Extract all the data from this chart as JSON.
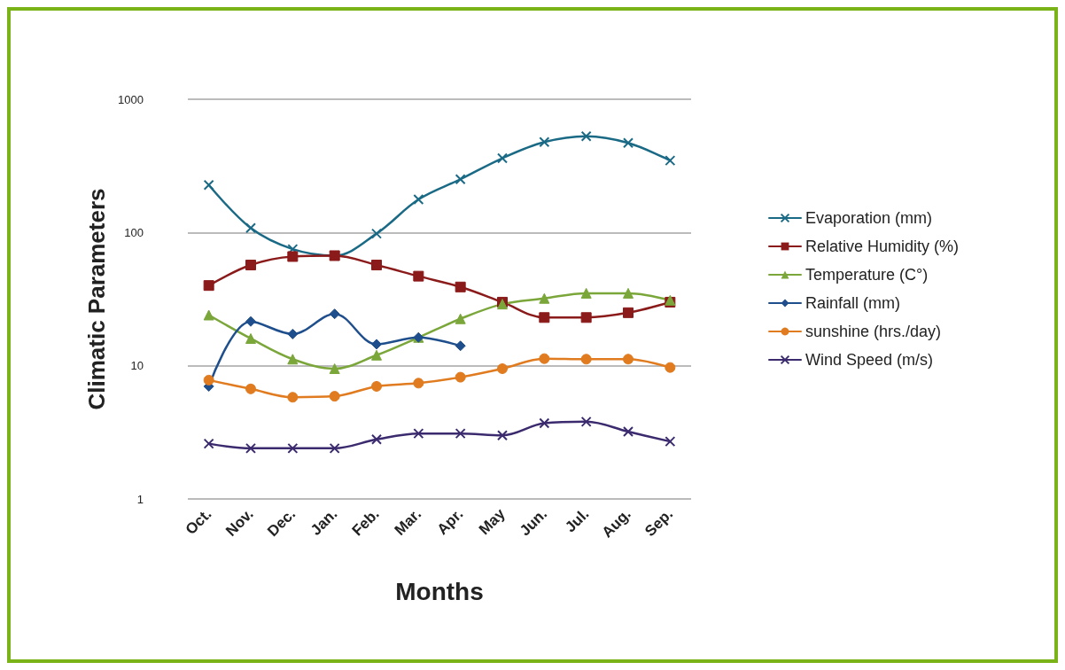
{
  "chart_data": {
    "type": "line",
    "xlabel": "Months",
    "ylabel": "Climatic Parameters",
    "categories": [
      "Oct.",
      "Nov.",
      "Dec.",
      "Jan.",
      "Feb.",
      "Mar.",
      "Apr.",
      "May",
      "Jun.",
      "Jul.",
      "Aug.",
      "Sep."
    ],
    "log": "y",
    "ylim": [
      1,
      1000
    ],
    "yticks": [
      1,
      10,
      100,
      1000
    ],
    "grid": "y",
    "legend": "right",
    "line_style": "solid",
    "series": [
      {
        "name": "Evaporation (mm)",
        "color": "#1a6a86",
        "marker": "cross",
        "values": [
          227,
          108,
          75,
          67,
          98,
          177,
          251,
          361,
          477,
          528,
          470,
          347
        ]
      },
      {
        "name": "Relative Humidity (%)",
        "color": "#8b1a1a",
        "marker": "square",
        "values": [
          40,
          57,
          66,
          67,
          57,
          47,
          39,
          30,
          23,
          23,
          25,
          30
        ]
      },
      {
        "name": "Temperature (C°)",
        "color": "#7aa63a",
        "marker": "triangle",
        "values": [
          24,
          16,
          11.2,
          9.5,
          12,
          16.3,
          22.5,
          29,
          32,
          35,
          35,
          31
        ]
      },
      {
        "name": "Rainfall (mm)",
        "color": "#1f4e8c",
        "marker": "diamond",
        "values": [
          7,
          21.5,
          17.3,
          24.5,
          14.5,
          16.3,
          14.1,
          null,
          null,
          null,
          null,
          null
        ]
      },
      {
        "name": "sunshine (hrs./day)",
        "color": "#e07b20",
        "marker": "circle",
        "values": [
          7.8,
          6.7,
          5.8,
          5.9,
          7.0,
          7.4,
          8.2,
          9.5,
          11.3,
          11.2,
          11.2,
          9.7
        ]
      },
      {
        "name": "Wind Speed (m/s)",
        "color": "#3b2a6e",
        "marker": "cross",
        "values": [
          2.6,
          2.4,
          2.4,
          2.4,
          2.8,
          3.1,
          3.1,
          3.0,
          3.7,
          3.8,
          3.2,
          2.7
        ]
      }
    ]
  }
}
